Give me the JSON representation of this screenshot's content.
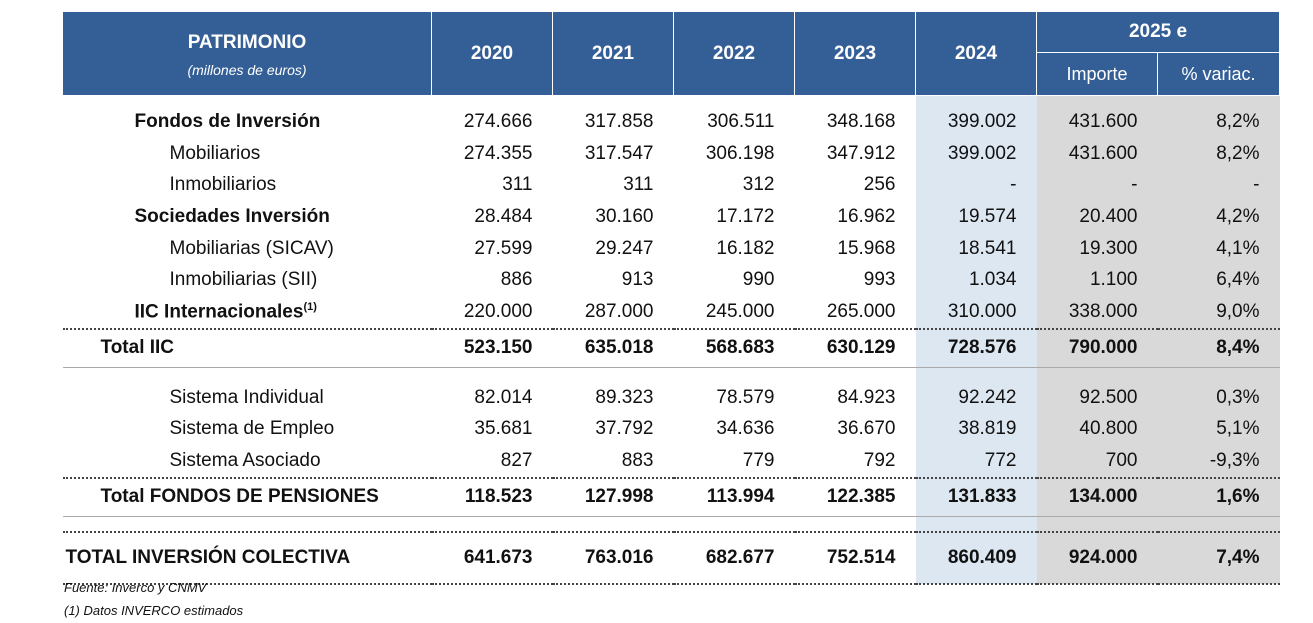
{
  "header": {
    "title": "PATRIMONIO",
    "subtitle": "(millones de euros)",
    "years": [
      "2020",
      "2021",
      "2022",
      "2023",
      "2024"
    ],
    "estimate_year": "2025 e",
    "importe": "Importe",
    "variac": "% variac."
  },
  "rows": [
    {
      "label": "Fondos de Inversión",
      "values": [
        "274.666",
        "317.858",
        "306.511",
        "348.168",
        "399.002",
        "431.600",
        "8,2%"
      ]
    },
    {
      "label": "Mobiliarios",
      "values": [
        "274.355",
        "317.547",
        "306.198",
        "347.912",
        "399.002",
        "431.600",
        "8,2%"
      ]
    },
    {
      "label": "Inmobiliarios",
      "values": [
        "311",
        "311",
        "312",
        "256",
        "-",
        "-",
        "-"
      ]
    },
    {
      "label": "Sociedades Inversión",
      "values": [
        "28.484",
        "30.160",
        "17.172",
        "16.962",
        "19.574",
        "20.400",
        "4,2%"
      ]
    },
    {
      "label": "Mobiliarias (SICAV)",
      "values": [
        "27.599",
        "29.247",
        "16.182",
        "15.968",
        "18.541",
        "19.300",
        "4,1%"
      ]
    },
    {
      "label": "Inmobiliarias (SII)",
      "values": [
        "886",
        "913",
        "990",
        "993",
        "1.034",
        "1.100",
        "6,4%"
      ]
    },
    {
      "label": "IIC Internacionales",
      "sup": "(1)",
      "values": [
        "220.000",
        "287.000",
        "245.000",
        "265.000",
        "310.000",
        "338.000",
        "9,0%"
      ]
    },
    {
      "label": "Total IIC",
      "values": [
        "523.150",
        "635.018",
        "568.683",
        "630.129",
        "728.576",
        "790.000",
        "8,4%"
      ]
    },
    {
      "label": "Sistema Individual",
      "values": [
        "82.014",
        "89.323",
        "78.579",
        "84.923",
        "92.242",
        "92.500",
        "0,3%"
      ]
    },
    {
      "label": "Sistema de Empleo",
      "values": [
        "35.681",
        "37.792",
        "34.636",
        "36.670",
        "38.819",
        "40.800",
        "5,1%"
      ]
    },
    {
      "label": "Sistema Asociado",
      "values": [
        "827",
        "883",
        "779",
        "792",
        "772",
        "700",
        "-9,3%"
      ]
    },
    {
      "label": "Total FONDOS DE PENSIONES",
      "values": [
        "118.523",
        "127.998",
        "113.994",
        "122.385",
        "131.833",
        "134.000",
        "1,6%"
      ]
    },
    {
      "label": "TOTAL INVERSIÓN COLECTIVA",
      "values": [
        "641.673",
        "763.016",
        "682.677",
        "752.514",
        "860.409",
        "924.000",
        "7,4%"
      ]
    }
  ],
  "notes": {
    "source": "Fuente: Inverco y CNMV",
    "footnote": "(1) Datos INVERCO estimados"
  },
  "colors": {
    "header_bg": "#345f96",
    "col_2024_bg": "#dde7f1",
    "col_2025_bg": "#d9d9d9"
  }
}
